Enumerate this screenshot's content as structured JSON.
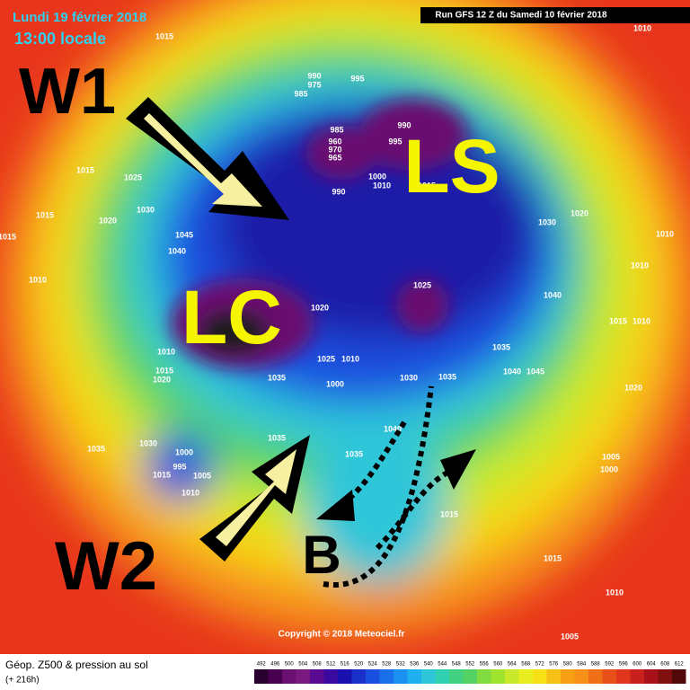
{
  "header": {
    "date": "Lundi 19 février 2018",
    "time": "13:00 locale",
    "run": "Run GFS 12 Z du Samedi 10 février 2018"
  },
  "annotations": {
    "w1": "W1",
    "w2": "W2",
    "ls": "LS",
    "lc": "LC",
    "b": "B"
  },
  "isobars": [
    "1015",
    "990",
    "975",
    "985",
    "995",
    "990",
    "995",
    "985",
    "960",
    "970",
    "965",
    "1000",
    "1010",
    "1015",
    "990",
    "1015",
    "1025",
    "1030",
    "1015",
    "1020",
    "1045",
    "1040",
    "1015",
    "1010",
    "1030",
    "1020",
    "1010",
    "1010",
    "1025",
    "1040",
    "1020",
    "1015",
    "1010",
    "1035",
    "1040",
    "1045",
    "1010",
    "1015",
    "1020",
    "1030",
    "1035",
    "1000",
    "1025",
    "1010",
    "1035",
    "1020",
    "1035",
    "1030",
    "1000",
    "1015",
    "995",
    "1005",
    "1010",
    "1035",
    "1040",
    "1035",
    "1015",
    "1005",
    "1000",
    "1015",
    "1010",
    "1005",
    "1010"
  ],
  "copyright": "Copyright © 2018 Meteociel.fr",
  "footer": {
    "title": "Géop. Z500 & pression au sol",
    "lead": "(+ 216h)"
  },
  "colorbar": {
    "labels": [
      492,
      496,
      500,
      504,
      508,
      512,
      516,
      520,
      524,
      528,
      532,
      536,
      540,
      544,
      548,
      552,
      556,
      560,
      564,
      568,
      572,
      576,
      580,
      584,
      588,
      592,
      596,
      600,
      604,
      608,
      612
    ]
  }
}
